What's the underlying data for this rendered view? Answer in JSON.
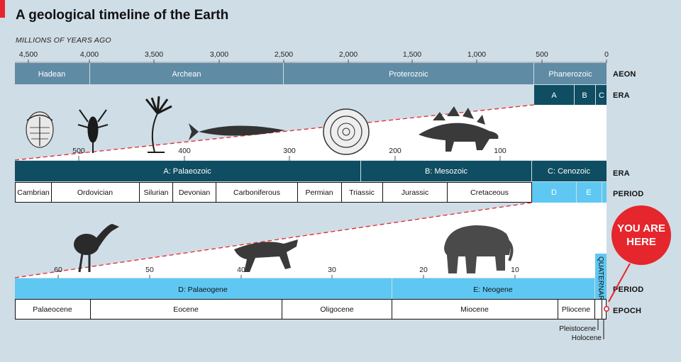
{
  "header": {
    "title": "A geological timeline of the Earth",
    "axis_unit": "MILLIONS OF YEARS AGO"
  },
  "top_axis": {
    "ticks": [
      "4,500",
      "4,000",
      "3,500",
      "3,000",
      "2,500",
      "2,000",
      "1,500",
      "1,000",
      "500",
      "0"
    ]
  },
  "rows": {
    "aeon": {
      "label": "AEON",
      "items": [
        "Hadean",
        "Archean",
        "Proterozoic",
        "Phanerozoic"
      ]
    },
    "era_top": {
      "label": "ERA",
      "items": [
        "A",
        "B",
        "C"
      ]
    },
    "era_middle": {
      "label": "ERA",
      "items": [
        "A: Palaeozoic",
        "B: Mesozoic",
        "C: Cenozoic"
      ],
      "ticks": [
        "500",
        "400",
        "300",
        "200",
        "100"
      ]
    },
    "period_middle": {
      "label": "PERIOD",
      "items": [
        "Cambrian",
        "Ordovician",
        "Silurian",
        "Devonian",
        "Carboniferous",
        "Permian",
        "Triassic",
        "Jurassic",
        "Cretaceous",
        "D",
        "E"
      ]
    },
    "period_bottom": {
      "label": "PERIOD",
      "items": [
        "D: Palaeogene",
        "E: Neogene"
      ],
      "quaternary": "QUATERNARY",
      "ticks": [
        "60",
        "50",
        "40",
        "30",
        "20",
        "10"
      ]
    },
    "epoch": {
      "label": "EPOCH",
      "items": [
        "Palaeocene",
        "Eocene",
        "Oligocene",
        "Miocene",
        "Pliocene"
      ],
      "notes": [
        "Pleistocene",
        "Holocene"
      ]
    }
  },
  "callout": {
    "line1": "YOU ARE",
    "line2": "HERE"
  },
  "illustrations": [
    "trilobite",
    "sea-scorpion",
    "crinoid",
    "fish",
    "ammonite",
    "stegosaurus",
    "flightless-bird",
    "horse",
    "mastodon"
  ],
  "colors": {
    "background": "#cfdde6",
    "aeon": "#5f8ba4",
    "era": "#0f4d62",
    "light_blue": "#5fc8f2",
    "accent_red": "#e5262c",
    "white": "#ffffff"
  }
}
